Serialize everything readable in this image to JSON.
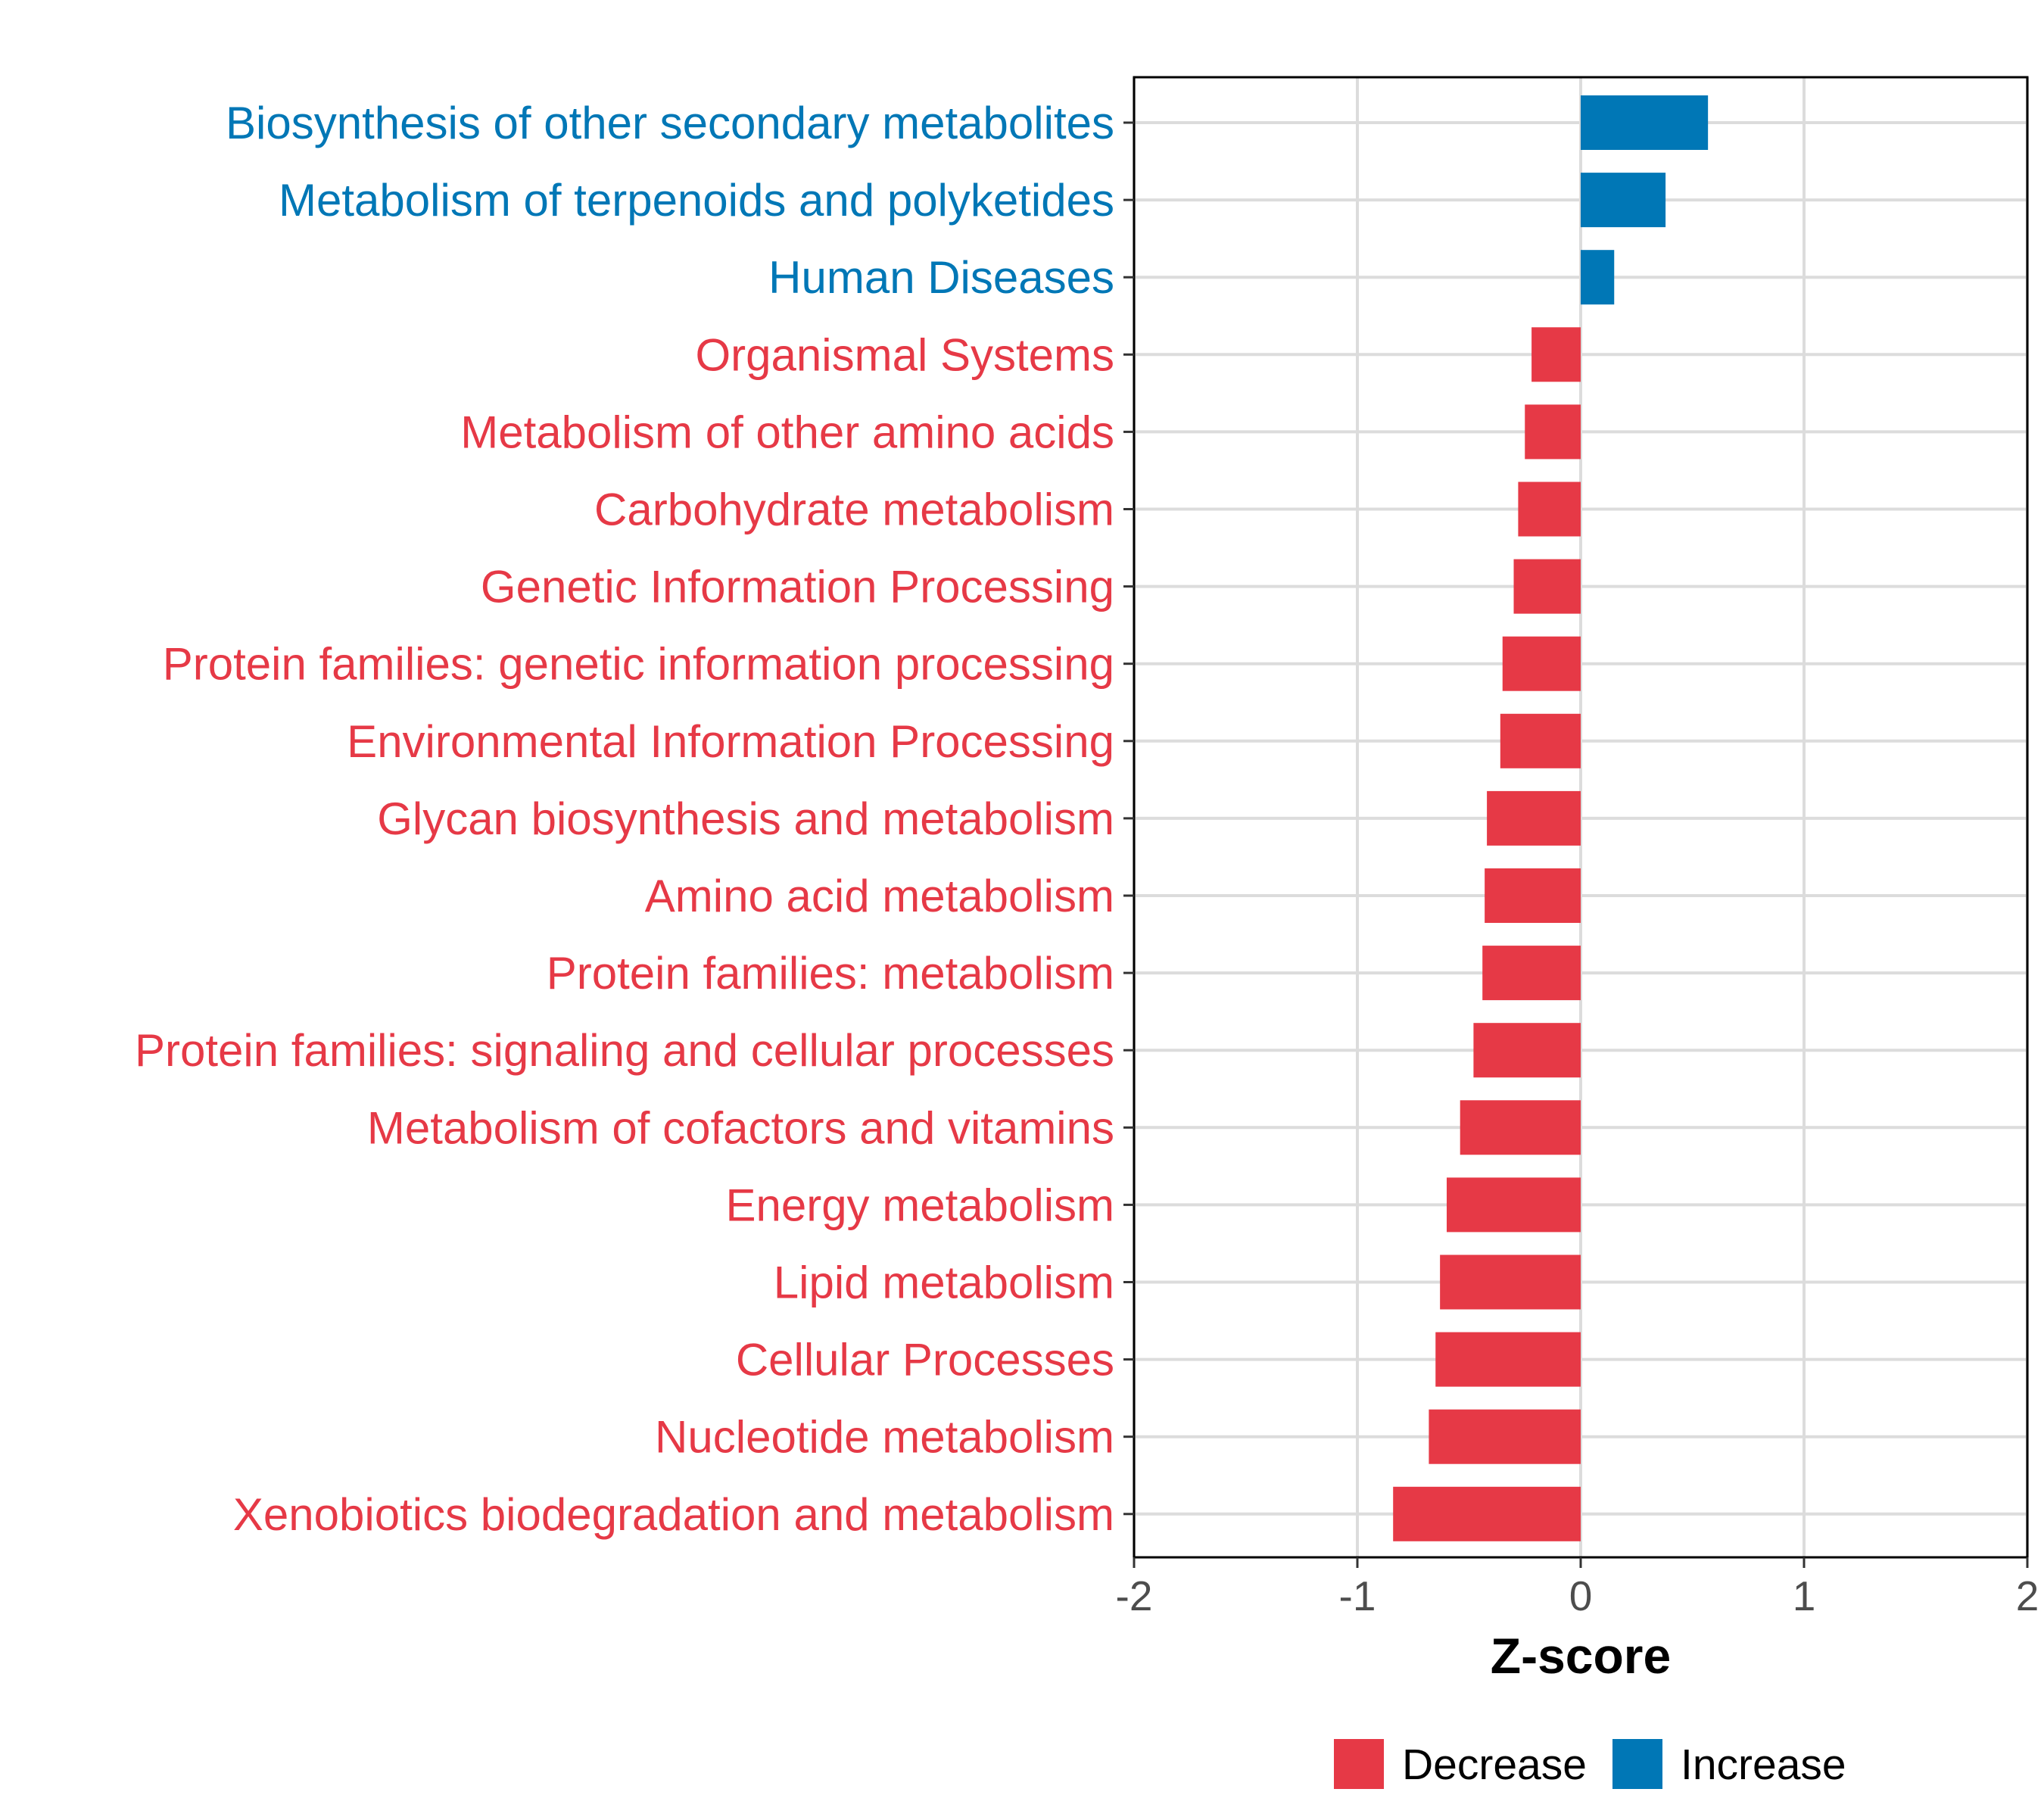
{
  "colors": {
    "decrease": "#E63946",
    "increase": "#0077B6"
  },
  "chart_data": {
    "type": "bar",
    "orientation": "horizontal",
    "xlabel": "Z-score",
    "ylabel": "",
    "xlim": [
      -2,
      2
    ],
    "xticks": [
      "-2",
      "-1",
      "0",
      "1",
      "2"
    ],
    "grid": true,
    "legend": {
      "position": "bottom",
      "entries": [
        {
          "label": "Decrease",
          "key": "decrease"
        },
        {
          "label": "Increase",
          "key": "increase"
        }
      ]
    },
    "bars": [
      {
        "category": "Biosynthesis of other secondary metabolites",
        "value": 0.57,
        "direction": "increase"
      },
      {
        "category": "Metabolism of terpenoids and polyketides",
        "value": 0.38,
        "direction": "increase"
      },
      {
        "category": "Human Diseases",
        "value": 0.15,
        "direction": "increase"
      },
      {
        "category": "Organismal Systems",
        "value": -0.22,
        "direction": "decrease"
      },
      {
        "category": "Metabolism of other amino acids",
        "value": -0.25,
        "direction": "decrease"
      },
      {
        "category": "Carbohydrate metabolism",
        "value": -0.28,
        "direction": "decrease"
      },
      {
        "category": "Genetic Information Processing",
        "value": -0.3,
        "direction": "decrease"
      },
      {
        "category": "Protein families: genetic information processing",
        "value": -0.35,
        "direction": "decrease"
      },
      {
        "category": "Environmental Information Processing",
        "value": -0.36,
        "direction": "decrease"
      },
      {
        "category": "Glycan biosynthesis and metabolism",
        "value": -0.42,
        "direction": "decrease"
      },
      {
        "category": "Amino acid metabolism",
        "value": -0.43,
        "direction": "decrease"
      },
      {
        "category": "Protein families: metabolism",
        "value": -0.44,
        "direction": "decrease"
      },
      {
        "category": "Protein families: signaling and cellular processes",
        "value": -0.48,
        "direction": "decrease"
      },
      {
        "category": "Metabolism of cofactors and vitamins",
        "value": -0.54,
        "direction": "decrease"
      },
      {
        "category": "Energy metabolism",
        "value": -0.6,
        "direction": "decrease"
      },
      {
        "category": "Lipid metabolism",
        "value": -0.63,
        "direction": "decrease"
      },
      {
        "category": "Cellular Processes",
        "value": -0.65,
        "direction": "decrease"
      },
      {
        "category": "Nucleotide metabolism",
        "value": -0.68,
        "direction": "decrease"
      },
      {
        "category": "Xenobiotics biodegradation and metabolism",
        "value": -0.84,
        "direction": "decrease"
      }
    ]
  }
}
